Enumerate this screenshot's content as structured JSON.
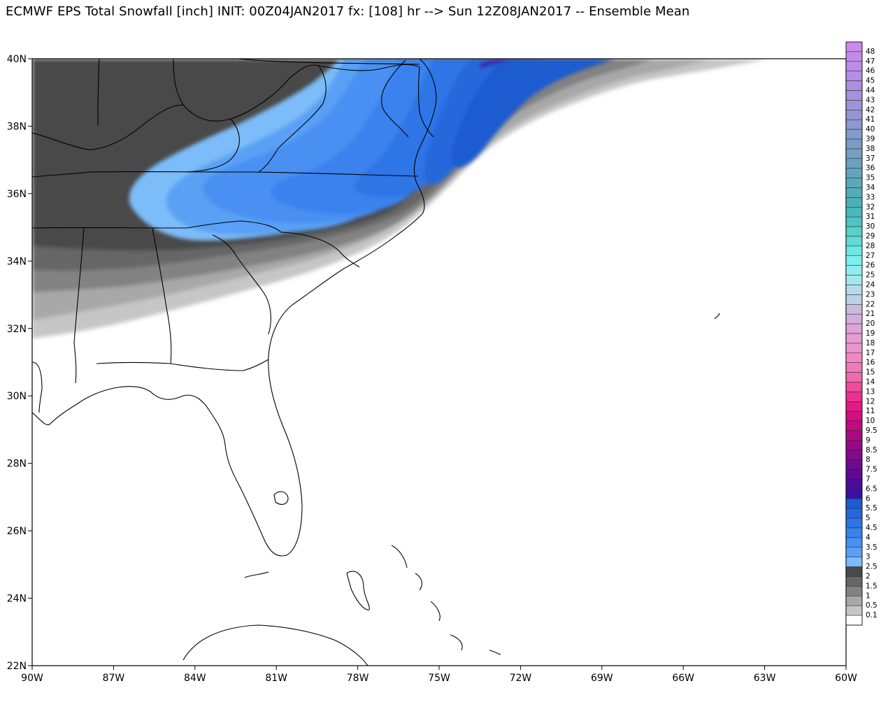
{
  "title": "ECMWF EPS Total Snowfall [inch] INIT: 00Z04JAN2017 fx: [108] hr --> Sun 12Z08JAN2017 -- Ensemble Mean",
  "map": {
    "lon_range": [
      -90,
      -60
    ],
    "lat_range": [
      22,
      40
    ],
    "lat_ticks": [
      {
        "value": 40,
        "label": "40N"
      },
      {
        "value": 38,
        "label": "38N"
      },
      {
        "value": 36,
        "label": "36N"
      },
      {
        "value": 34,
        "label": "34N"
      },
      {
        "value": 32,
        "label": "32N"
      },
      {
        "value": 30,
        "label": "30N"
      },
      {
        "value": 28,
        "label": "28N"
      },
      {
        "value": 26,
        "label": "26N"
      },
      {
        "value": 24,
        "label": "24N"
      },
      {
        "value": 22,
        "label": "22N"
      }
    ],
    "lon_ticks": [
      {
        "value": -90,
        "label": "90W"
      },
      {
        "value": -87,
        "label": "87W"
      },
      {
        "value": -84,
        "label": "84W"
      },
      {
        "value": -81,
        "label": "81W"
      },
      {
        "value": -78,
        "label": "78W"
      },
      {
        "value": -75,
        "label": "75W"
      },
      {
        "value": -72,
        "label": "72W"
      },
      {
        "value": -69,
        "label": "69W"
      },
      {
        "value": -66,
        "label": "66W"
      },
      {
        "value": -63,
        "label": "63W"
      },
      {
        "value": -60,
        "label": "60W"
      }
    ]
  },
  "colorbar": {
    "levels": [
      {
        "label": "48",
        "color": "#cc88ee"
      },
      {
        "label": "47",
        "color": "#c48aea"
      },
      {
        "label": "46",
        "color": "#bc8ce6"
      },
      {
        "label": "45",
        "color": "#b48ee2"
      },
      {
        "label": "44",
        "color": "#ac90de"
      },
      {
        "label": "43",
        "color": "#a492da"
      },
      {
        "label": "42",
        "color": "#9c94d6"
      },
      {
        "label": "41",
        "color": "#9496d2"
      },
      {
        "label": "40",
        "color": "#8c98ce"
      },
      {
        "label": "39",
        "color": "#849aca"
      },
      {
        "label": "38",
        "color": "#7c9cc6"
      },
      {
        "label": "37",
        "color": "#749ec2"
      },
      {
        "label": "36",
        "color": "#6ca0be"
      },
      {
        "label": "35",
        "color": "#64a4bc"
      },
      {
        "label": "34",
        "color": "#5ca8ba"
      },
      {
        "label": "33",
        "color": "#54acb8"
      },
      {
        "label": "32",
        "color": "#4cb0b6"
      },
      {
        "label": "31",
        "color": "#48b8bc"
      },
      {
        "label": "30",
        "color": "#50c4c4"
      },
      {
        "label": "29",
        "color": "#58d0cc"
      },
      {
        "label": "28",
        "color": "#60dcd4"
      },
      {
        "label": "27",
        "color": "#6ce8e0"
      },
      {
        "label": "26",
        "color": "#7cf0ec"
      },
      {
        "label": "25",
        "color": "#90eef0"
      },
      {
        "label": "24",
        "color": "#a4e8ee"
      },
      {
        "label": "23",
        "color": "#b4dceb"
      },
      {
        "label": "22",
        "color": "#bcd0e6"
      },
      {
        "label": "21",
        "color": "#c8bcdc"
      },
      {
        "label": "20",
        "color": "#d4aedc"
      },
      {
        "label": "19",
        "color": "#dca4d8"
      },
      {
        "label": "18",
        "color": "#e49cd2"
      },
      {
        "label": "17",
        "color": "#ec94cc"
      },
      {
        "label": "16",
        "color": "#f088c4"
      },
      {
        "label": "15",
        "color": "#f07ab8"
      },
      {
        "label": "14",
        "color": "#f06aac"
      },
      {
        "label": "13",
        "color": "#ee4c9c"
      },
      {
        "label": "12",
        "color": "#ec3090"
      },
      {
        "label": "11",
        "color": "#e41a84"
      },
      {
        "label": "10",
        "color": "#d40e7e"
      },
      {
        "label": "9.5",
        "color": "#c00a80"
      },
      {
        "label": "9",
        "color": "#aa0a84"
      },
      {
        "label": "8.5",
        "color": "#960a88"
      },
      {
        "label": "8",
        "color": "#820a8c"
      },
      {
        "label": "7.5",
        "color": "#6e0a90"
      },
      {
        "label": "7",
        "color": "#5e0a94"
      },
      {
        "label": "6.5",
        "color": "#4c0c98"
      },
      {
        "label": "6",
        "color": "#3c10a0"
      },
      {
        "label": "5.5",
        "color": "#1c5cd0"
      },
      {
        "label": "5",
        "color": "#2668dc"
      },
      {
        "label": "4.5",
        "color": "#2e74e6"
      },
      {
        "label": "4",
        "color": "#3a82ee"
      },
      {
        "label": "3.5",
        "color": "#4890f2"
      },
      {
        "label": "3",
        "color": "#5aa0f4"
      },
      {
        "label": "2.5",
        "color": "#7cbcf8"
      },
      {
        "label": "2",
        "color": "#4a4a4a"
      },
      {
        "label": "1.5",
        "color": "#666666"
      },
      {
        "label": "1",
        "color": "#828282"
      },
      {
        "label": "0.5",
        "color": "#a8a8a8"
      },
      {
        "label": "0.1",
        "color": "#c6c6c6"
      },
      {
        "label": "",
        "color": "#ffffff"
      }
    ]
  }
}
